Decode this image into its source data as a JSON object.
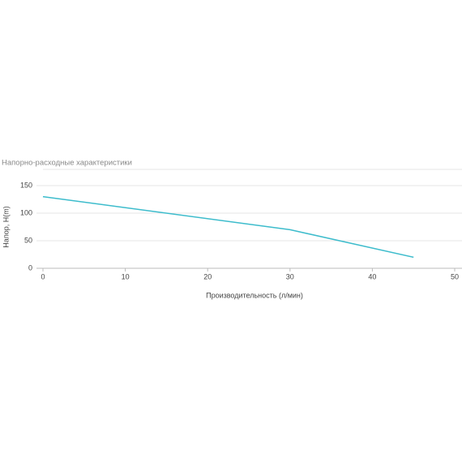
{
  "chart_data": {
    "type": "line",
    "title": "Напорно-расходные характеристики",
    "x_label": "Производительность (л/мин)",
    "y_label": "Напор, H(m)",
    "x": [
      0,
      30,
      45
    ],
    "series": [
      {
        "name": "Напор",
        "color": "#3dbccc",
        "values": [
          130,
          70,
          20
        ]
      }
    ],
    "xlim": [
      0,
      50
    ],
    "xticks": [
      0,
      10,
      20,
      30,
      40,
      50
    ],
    "ylim": [
      0,
      150
    ],
    "yticks": [
      0,
      50,
      100,
      150
    ],
    "grid": true
  }
}
